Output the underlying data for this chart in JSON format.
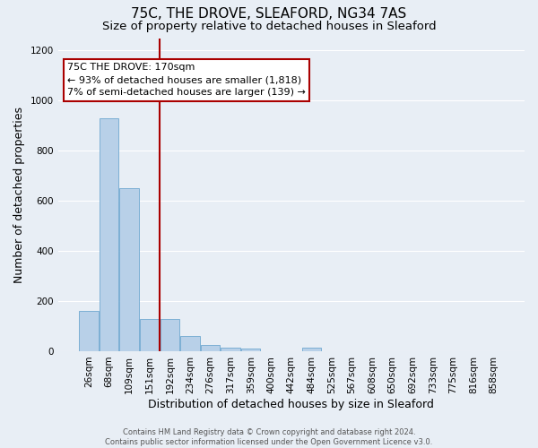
{
  "title": "75C, THE DROVE, SLEAFORD, NG34 7AS",
  "subtitle": "Size of property relative to detached houses in Sleaford",
  "xlabel": "Distribution of detached houses by size in Sleaford",
  "ylabel": "Number of detached properties",
  "categories": [
    "26sqm",
    "68sqm",
    "109sqm",
    "151sqm",
    "192sqm",
    "234sqm",
    "276sqm",
    "317sqm",
    "359sqm",
    "400sqm",
    "442sqm",
    "484sqm",
    "525sqm",
    "567sqm",
    "608sqm",
    "650sqm",
    "692sqm",
    "733sqm",
    "775sqm",
    "816sqm",
    "858sqm"
  ],
  "values": [
    160,
    930,
    650,
    130,
    130,
    60,
    25,
    15,
    10,
    0,
    0,
    15,
    0,
    0,
    0,
    0,
    0,
    0,
    0,
    0,
    0
  ],
  "bar_color": "#b8d0e8",
  "bar_edge_color": "#6fa8d0",
  "background_color": "#e8eef5",
  "grid_color": "#ffffff",
  "vline_color": "#aa0000",
  "annotation_text": "75C THE DROVE: 170sqm\n← 93% of detached houses are smaller (1,818)\n7% of semi-detached houses are larger (139) →",
  "annotation_box_color": "#ffffff",
  "annotation_box_edge": "#aa0000",
  "ylim": [
    0,
    1250
  ],
  "yticks": [
    0,
    200,
    400,
    600,
    800,
    1000,
    1200
  ],
  "footer_line1": "Contains HM Land Registry data © Crown copyright and database right 2024.",
  "footer_line2": "Contains public sector information licensed under the Open Government Licence v3.0.",
  "title_fontsize": 11,
  "subtitle_fontsize": 9.5,
  "tick_fontsize": 7.5,
  "ylabel_fontsize": 9,
  "xlabel_fontsize": 9,
  "footer_fontsize": 6,
  "annotation_fontsize": 8
}
